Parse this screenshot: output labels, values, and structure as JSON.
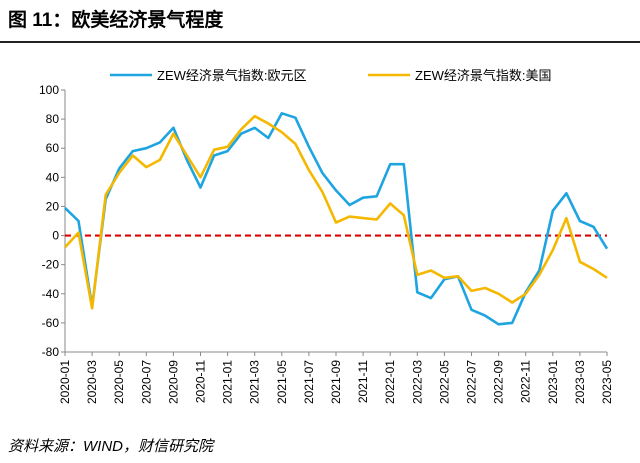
{
  "chart_data": {
    "type": "line",
    "title": "图 11：欧美经济景气程度",
    "source": "资料来源：WIND，财信研究院",
    "categories": [
      "2020-01",
      null,
      "2020-03",
      null,
      "2020-05",
      null,
      "2020-07",
      null,
      "2020-09",
      null,
      "2020-11",
      null,
      "2021-01",
      null,
      "2021-03",
      null,
      "2021-05",
      null,
      "2021-07",
      null,
      "2021-09",
      null,
      "2021-11",
      null,
      "2022-01",
      null,
      "2022-03",
      null,
      "2022-05",
      null,
      "2022-07",
      null,
      "2022-09",
      null,
      "2022-11",
      null,
      "2023-01",
      null,
      "2023-03",
      null,
      "2023-05"
    ],
    "series": [
      {
        "name": "ZEW经济景气指数:欧元区",
        "color": "#1ea4e0",
        "values": [
          19,
          10,
          -49,
          25,
          46,
          58,
          60,
          64,
          74,
          52,
          33,
          55,
          58,
          70,
          74,
          67,
          84,
          81,
          61,
          43,
          31,
          21,
          26,
          27,
          49,
          49,
          -39,
          -43,
          -30,
          -28,
          -51,
          -55,
          -61,
          -60,
          -39,
          -24,
          17,
          29,
          10,
          6,
          -9
        ]
      },
      {
        "name": "ZEW经济景气指数:美国",
        "color": "#f5b800",
        "values": [
          -8,
          2,
          -50,
          28,
          43,
          55,
          47,
          52,
          70,
          55,
          40,
          59,
          61,
          73,
          82,
          77,
          71,
          63,
          45,
          30,
          9,
          13,
          12,
          11,
          22,
          14,
          -27,
          -24,
          -29,
          -28,
          -38,
          -36,
          -40,
          -46,
          -40,
          -27,
          -10,
          12,
          -18,
          -23,
          -29
        ]
      }
    ],
    "ylim": [
      -80,
      100
    ],
    "yticks": [
      -80,
      -60,
      -40,
      -20,
      0,
      20,
      40,
      60,
      80,
      100
    ],
    "reference_line": {
      "value": 0,
      "color": "#e00000"
    },
    "grid": false,
    "legend": "top"
  }
}
